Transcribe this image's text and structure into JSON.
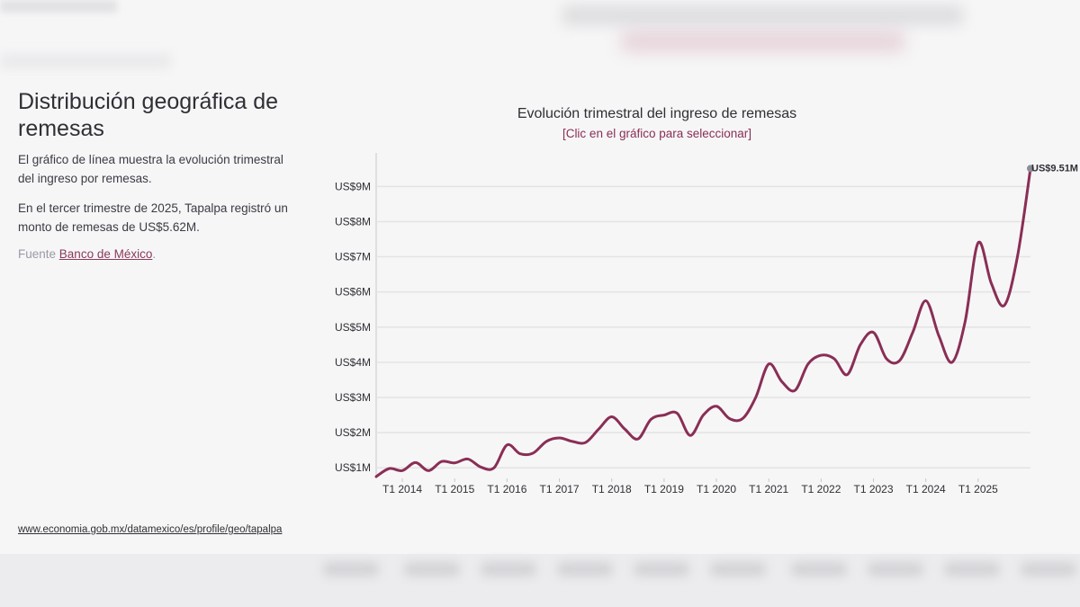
{
  "page": {
    "title": "Distribución geográfica de remesas",
    "description": "El gráfico de línea muestra la evolución trimestral del ingreso por remesas.",
    "highlight": "En el tercer trimestre de 2025, Tapalpa registró un monto de remesas de US$5.62M.",
    "source_label": "Fuente",
    "source_link": "Banco de México",
    "source_end": ".",
    "profile_url": "www.economia.gob.mx/datamexico/es/profile/geo/tapalpa"
  },
  "colors": {
    "line": "#8a2e55",
    "grid": "#e3e3e6",
    "axis": "#c8c8cc",
    "text": "#2f2f35",
    "marker": "#8e8e96",
    "background": "#f6f6f7"
  },
  "chart_data": {
    "type": "line",
    "title": "Evolución trimestral del ingreso de remesas",
    "subtitle": "[Clic en el gráfico para seleccionar]",
    "xlabel": "",
    "ylabel": "",
    "ylim": [
      0.75,
      9.75
    ],
    "yticks": [
      1,
      2,
      3,
      4,
      5,
      6,
      7,
      8,
      9
    ],
    "ytick_labels": [
      "US$1M",
      "US$2M",
      "US$3M",
      "US$4M",
      "US$5M",
      "US$6M",
      "US$7M",
      "US$8M",
      "US$9M"
    ],
    "x_start_year": 2013,
    "x_start_quarter": 3,
    "xtick_labels": [
      "T1 2014",
      "T1 2015",
      "T1 2016",
      "T1 2017",
      "T1 2018",
      "T1 2019",
      "T1 2020",
      "T1 2021",
      "T1 2022",
      "T1 2023",
      "T1 2024",
      "T1 2025"
    ],
    "xtick_indices": [
      2,
      6,
      10,
      14,
      18,
      22,
      26,
      30,
      34,
      38,
      42,
      46
    ],
    "series": [
      {
        "name": "Tapalpa",
        "values": [
          0.75,
          0.98,
          0.92,
          1.15,
          0.92,
          1.18,
          1.14,
          1.25,
          1.02,
          1.0,
          1.65,
          1.4,
          1.42,
          1.75,
          1.85,
          1.75,
          1.72,
          2.1,
          2.45,
          2.1,
          1.82,
          2.38,
          2.5,
          2.55,
          1.92,
          2.5,
          2.75,
          2.4,
          2.4,
          3.0,
          3.95,
          3.45,
          3.2,
          3.95,
          4.2,
          4.1,
          3.65,
          4.5,
          4.85,
          4.1,
          4.05,
          4.85,
          5.75,
          4.75,
          4.0,
          5.15,
          7.4,
          6.25,
          5.62,
          7.0,
          9.51
        ]
      }
    ],
    "last_point_label": "US$9.51M"
  }
}
